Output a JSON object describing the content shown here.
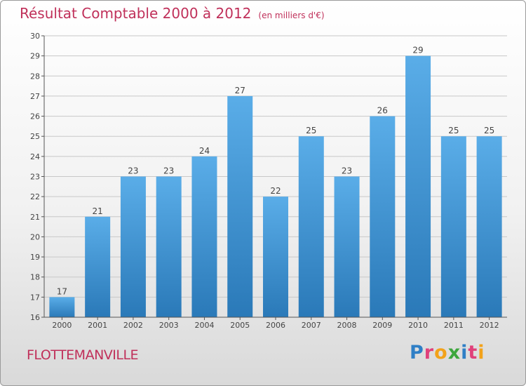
{
  "header": {
    "title": "Résultat Comptable 2000 à 2012",
    "subtitle": "(en milliers d'€)"
  },
  "footer": {
    "commune": "FLOTTEMANVILLE",
    "logo": "Proxiti",
    "logo_letters": [
      {
        "ch": "P",
        "color": "#2f7fc6"
      },
      {
        "ch": "r",
        "color": "#e0407a"
      },
      {
        "ch": "o",
        "color": "#f2a21a"
      },
      {
        "ch": "x",
        "color": "#3da63d"
      },
      {
        "ch": "i",
        "color": "#2f7fc6"
      },
      {
        "ch": "t",
        "color": "#e0407a"
      },
      {
        "ch": "i",
        "color": "#f2a21a"
      }
    ]
  },
  "chart_data": {
    "type": "bar",
    "categories": [
      "2000",
      "2001",
      "2002",
      "2003",
      "2004",
      "2005",
      "2006",
      "2007",
      "2008",
      "2009",
      "2010",
      "2011",
      "2012"
    ],
    "values": [
      17,
      21,
      23,
      23,
      24,
      27,
      22,
      25,
      23,
      26,
      29,
      25,
      25
    ],
    "ylim": [
      16,
      30
    ],
    "yticks": [
      16,
      17,
      18,
      19,
      20,
      21,
      22,
      23,
      24,
      25,
      26,
      27,
      28,
      29,
      30
    ],
    "grid": true,
    "colors": {
      "bar_top": "#5aade8",
      "bar_bottom": "#2a79b8",
      "grid": "#c8c8c8",
      "axis": "#555555"
    }
  }
}
